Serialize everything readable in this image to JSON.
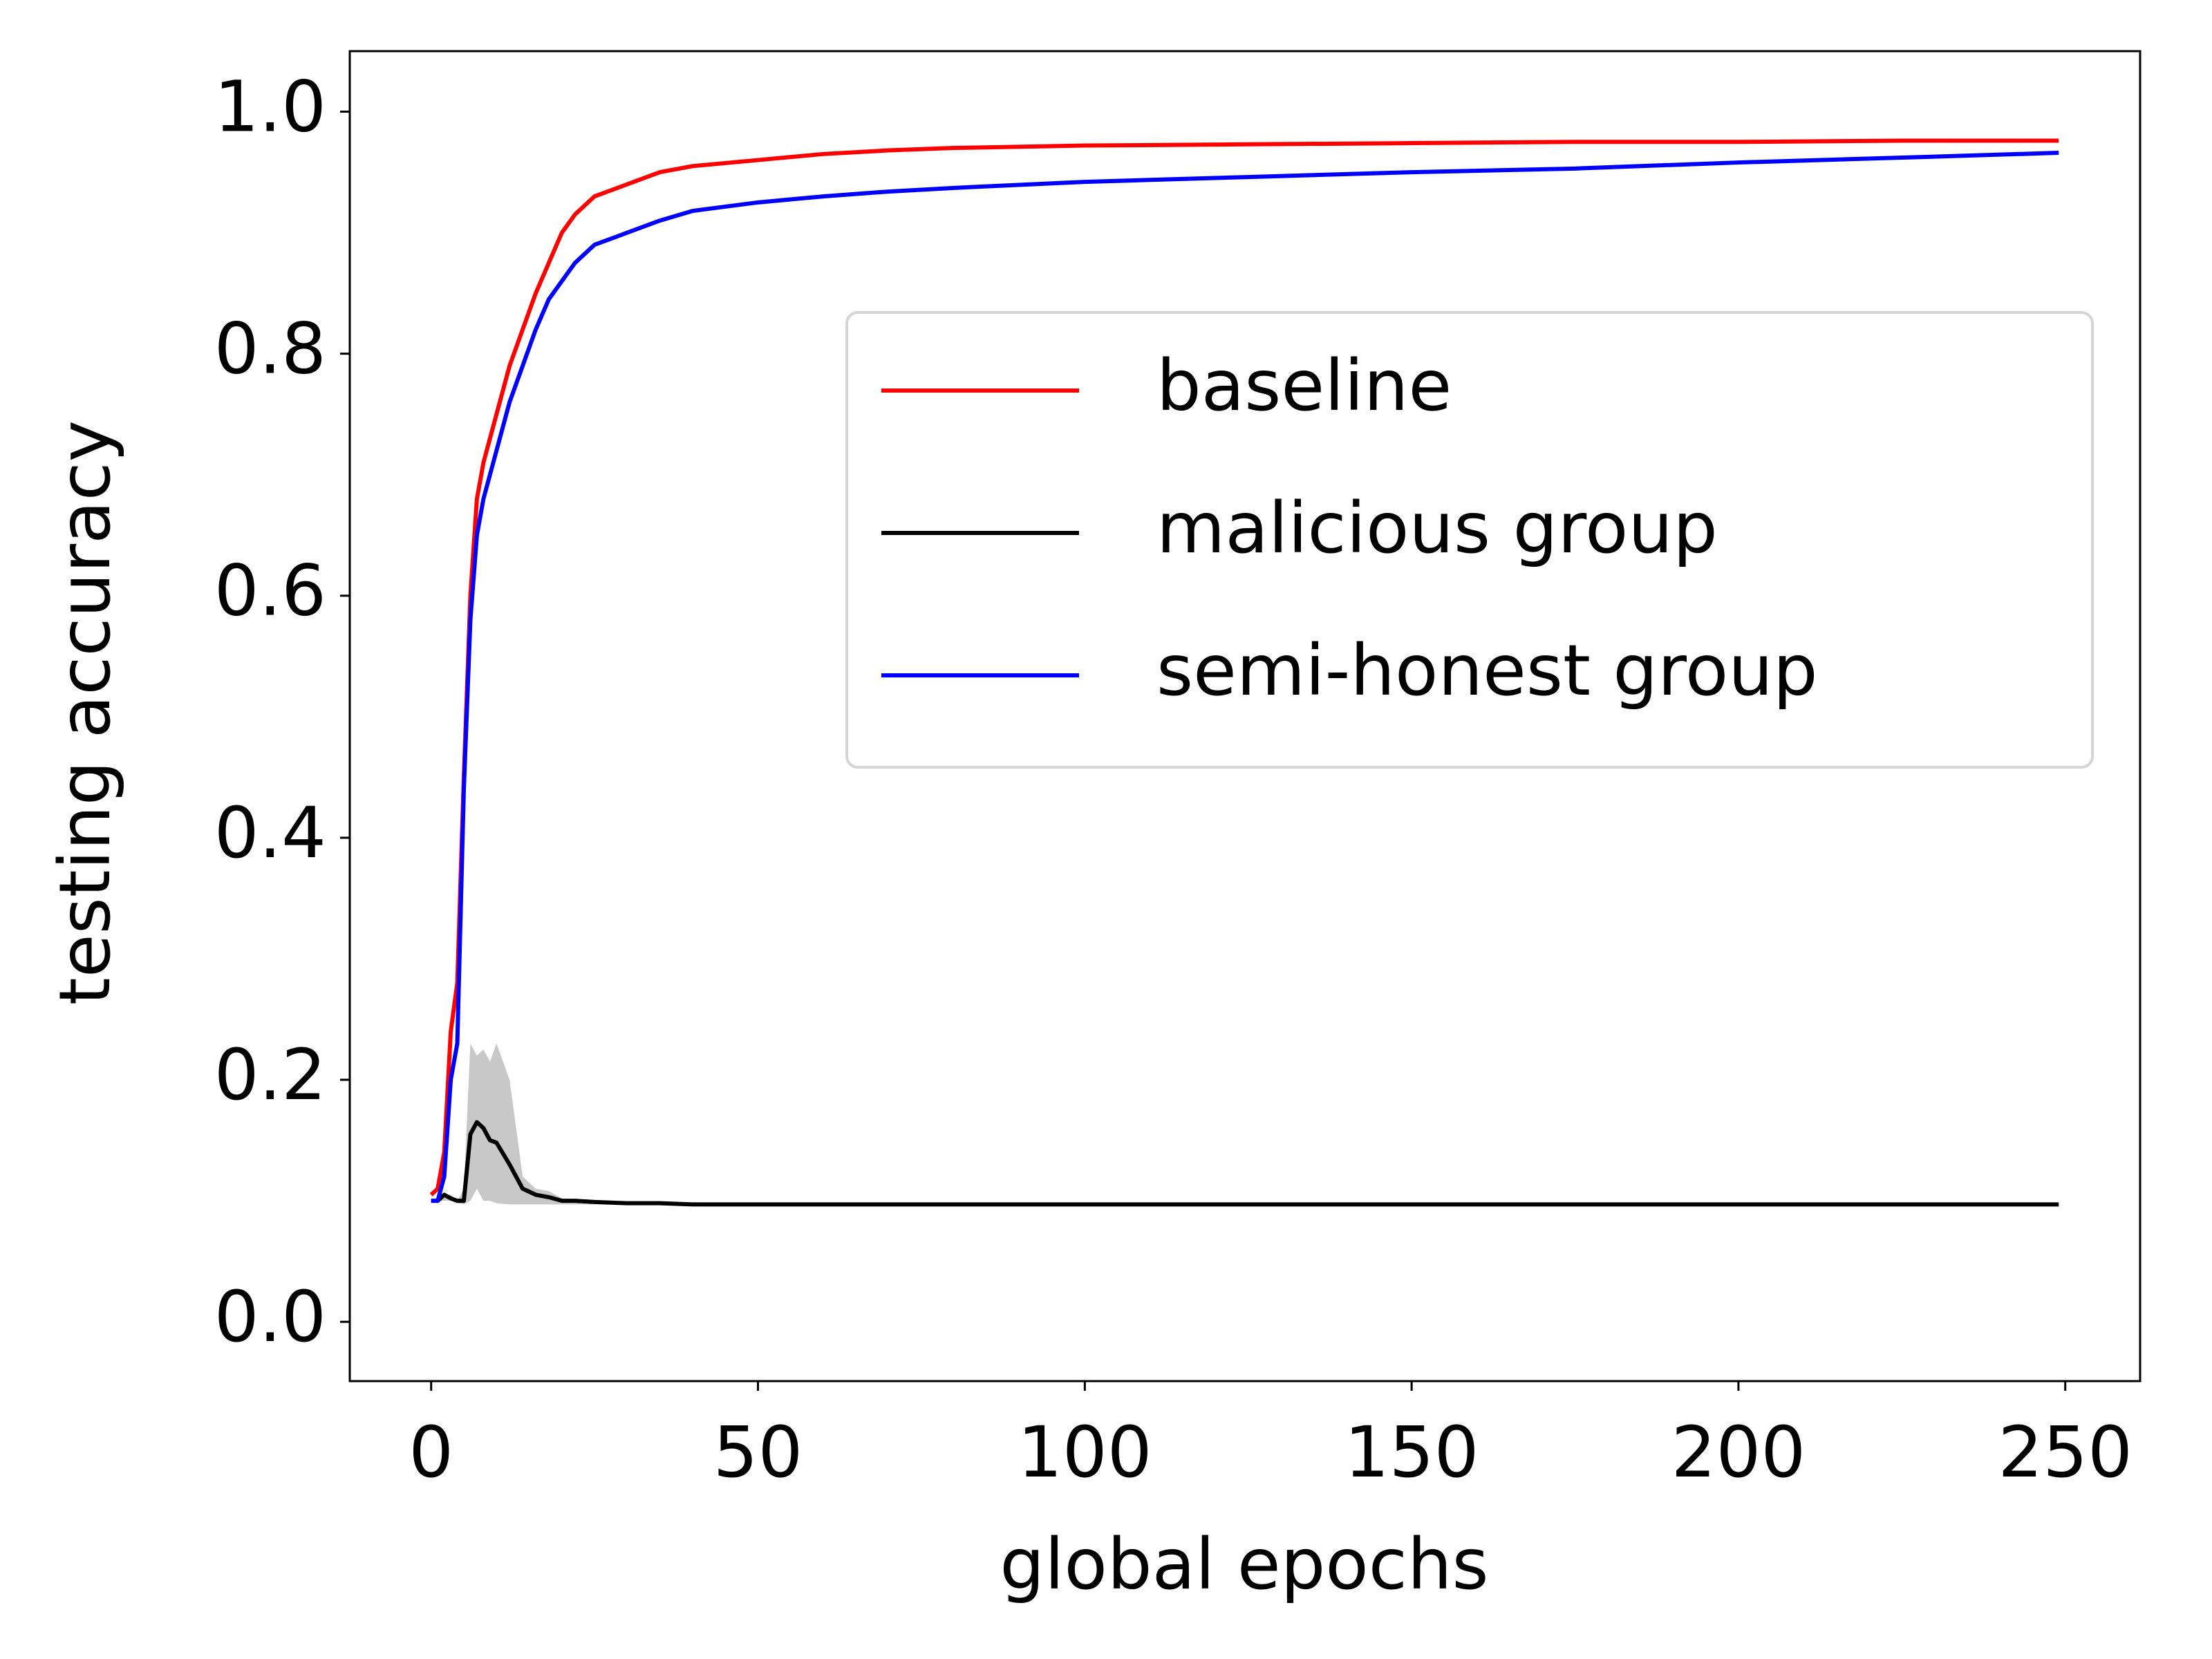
{
  "chart_data": {
    "type": "line",
    "xlabel": "global epochs",
    "ylabel": "testing accuracy",
    "x": [
      0,
      1,
      2,
      3,
      4,
      5,
      6,
      7,
      8,
      9,
      10,
      12,
      14,
      16,
      18,
      20,
      22,
      25,
      30,
      35,
      40,
      50,
      60,
      70,
      80,
      100,
      125,
      150,
      175,
      200,
      225,
      249
    ],
    "series": [
      {
        "name": "baseline",
        "color": "#ff0000",
        "values": [
          0.105,
          0.11,
          0.14,
          0.24,
          0.28,
          0.45,
          0.6,
          0.68,
          0.71,
          0.73,
          0.75,
          0.79,
          0.82,
          0.85,
          0.875,
          0.9,
          0.915,
          0.93,
          0.94,
          0.95,
          0.955,
          0.96,
          0.965,
          0.968,
          0.97,
          0.972,
          0.973,
          0.974,
          0.975,
          0.975,
          0.976,
          0.976
        ]
      },
      {
        "name": "malicious group",
        "color": "#000000",
        "band_color": "#c8c8c8",
        "values": [
          0.1,
          0.1,
          0.105,
          0.102,
          0.1,
          0.1,
          0.155,
          0.165,
          0.16,
          0.15,
          0.148,
          0.13,
          0.11,
          0.105,
          0.103,
          0.1,
          0.1,
          0.099,
          0.098,
          0.098,
          0.097,
          0.097,
          0.097,
          0.097,
          0.097,
          0.097,
          0.097,
          0.097,
          0.097,
          0.097,
          0.097,
          0.097
        ],
        "upper": [
          0.1,
          0.1,
          0.105,
          0.105,
          0.1,
          0.11,
          0.23,
          0.22,
          0.225,
          0.215,
          0.23,
          0.2,
          0.12,
          0.11,
          0.108,
          0.102,
          0.101,
          0.1,
          0.099,
          0.099,
          0.098,
          0.097,
          0.097,
          0.097,
          0.097,
          0.097,
          0.097,
          0.097,
          0.097,
          0.097,
          0.097,
          0.097
        ],
        "lower": [
          0.1,
          0.1,
          0.1,
          0.1,
          0.098,
          0.097,
          0.1,
          0.11,
          0.1,
          0.1,
          0.098,
          0.097,
          0.097,
          0.097,
          0.097,
          0.097,
          0.097,
          0.097,
          0.097,
          0.097,
          0.097,
          0.097,
          0.097,
          0.097,
          0.097,
          0.097,
          0.097,
          0.097,
          0.097,
          0.097,
          0.097,
          0.097
        ]
      },
      {
        "name": "semi-honest group",
        "color": "#0000ff",
        "values": [
          0.1,
          0.1,
          0.12,
          0.2,
          0.23,
          0.44,
          0.58,
          0.65,
          0.68,
          0.7,
          0.72,
          0.76,
          0.79,
          0.82,
          0.845,
          0.86,
          0.875,
          0.89,
          0.9,
          0.91,
          0.918,
          0.925,
          0.93,
          0.934,
          0.937,
          0.942,
          0.946,
          0.95,
          0.953,
          0.958,
          0.962,
          0.966
        ]
      }
    ],
    "xlim": [
      -12.45,
      261.45
    ],
    "xticks": [
      0,
      50,
      100,
      150,
      200,
      250
    ],
    "ylim": [
      -0.049,
      1.05
    ],
    "yticks": [
      {
        "value": 0,
        "label": "0.0"
      },
      {
        "value": 0.2,
        "label": "0.2"
      },
      {
        "value": 0.4,
        "label": "0.4"
      },
      {
        "value": 0.6,
        "label": "0.6"
      },
      {
        "value": 0.8,
        "label": "0.8"
      },
      {
        "value": 1,
        "label": "1.0"
      }
    ],
    "legend": "center right",
    "grid": false
  }
}
